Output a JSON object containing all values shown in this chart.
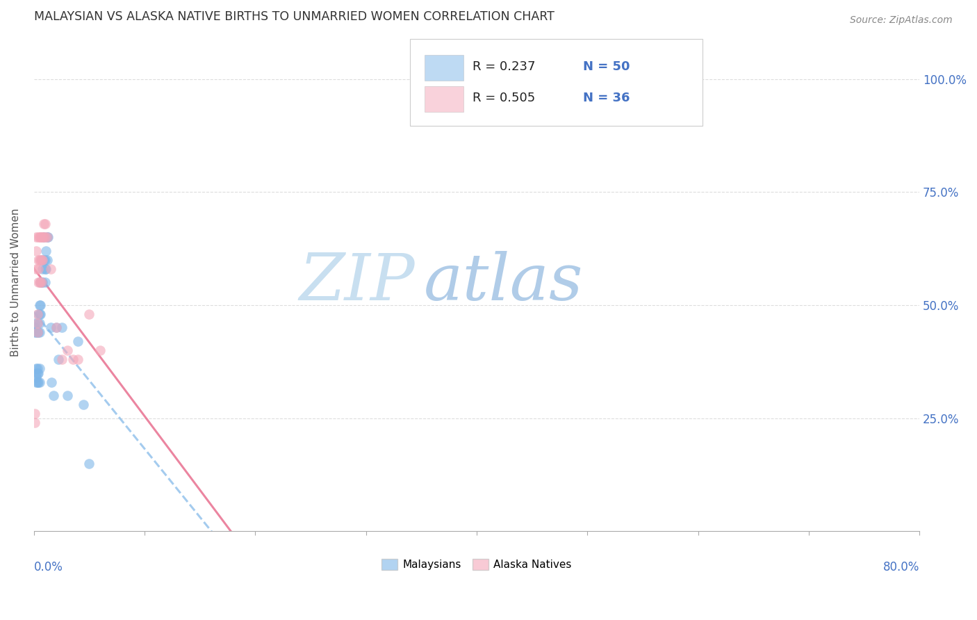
{
  "title": "MALAYSIAN VS ALASKA NATIVE BIRTHS TO UNMARRIED WOMEN CORRELATION CHART",
  "source": "Source: ZipAtlas.com",
  "ylabel": "Births to Unmarried Women",
  "ytick_labels": [
    "25.0%",
    "50.0%",
    "75.0%",
    "100.0%"
  ],
  "ytick_values": [
    0.25,
    0.5,
    0.75,
    1.0
  ],
  "xlim": [
    0.0,
    0.8
  ],
  "ylim": [
    0.0,
    1.1
  ],
  "legend_r1": "R = 0.237",
  "legend_n1": "N = 50",
  "legend_r2": "R = 0.505",
  "legend_n2": "N = 36",
  "malaysian_color": "#7EB6E8",
  "alaska_color": "#F4A7B9",
  "trend_blue_color": "#7EB6E8",
  "trend_pink_color": "#E87090",
  "watermark_color": "#D0E8F8",
  "malaysian_x": [
    0.001,
    0.001,
    0.001,
    0.002,
    0.002,
    0.002,
    0.002,
    0.002,
    0.003,
    0.003,
    0.003,
    0.003,
    0.003,
    0.004,
    0.004,
    0.004,
    0.004,
    0.005,
    0.005,
    0.005,
    0.005,
    0.005,
    0.005,
    0.006,
    0.006,
    0.006,
    0.007,
    0.007,
    0.008,
    0.008,
    0.009,
    0.009,
    0.01,
    0.01,
    0.01,
    0.011,
    0.011,
    0.012,
    0.012,
    0.013,
    0.015,
    0.016,
    0.018,
    0.02,
    0.022,
    0.025,
    0.03,
    0.04,
    0.045,
    0.05
  ],
  "malaysian_y": [
    0.44,
    0.45,
    0.46,
    0.33,
    0.34,
    0.35,
    0.36,
    0.44,
    0.33,
    0.35,
    0.36,
    0.44,
    0.46,
    0.33,
    0.35,
    0.44,
    0.48,
    0.33,
    0.36,
    0.44,
    0.46,
    0.48,
    0.5,
    0.48,
    0.5,
    0.55,
    0.55,
    0.6,
    0.55,
    0.58,
    0.6,
    0.65,
    0.55,
    0.58,
    0.6,
    0.58,
    0.62,
    0.6,
    0.65,
    0.65,
    0.45,
    0.33,
    0.3,
    0.45,
    0.38,
    0.45,
    0.3,
    0.42,
    0.28,
    0.15
  ],
  "alaska_x": [
    0.001,
    0.001,
    0.002,
    0.002,
    0.002,
    0.003,
    0.003,
    0.003,
    0.004,
    0.004,
    0.004,
    0.004,
    0.005,
    0.005,
    0.005,
    0.006,
    0.006,
    0.006,
    0.007,
    0.007,
    0.007,
    0.008,
    0.008,
    0.009,
    0.009,
    0.01,
    0.01,
    0.012,
    0.015,
    0.02,
    0.025,
    0.03,
    0.035,
    0.04,
    0.05,
    0.06
  ],
  "alaska_y": [
    0.24,
    0.26,
    0.58,
    0.62,
    0.65,
    0.44,
    0.46,
    0.48,
    0.55,
    0.58,
    0.6,
    0.65,
    0.55,
    0.6,
    0.65,
    0.55,
    0.6,
    0.65,
    0.55,
    0.6,
    0.65,
    0.6,
    0.65,
    0.65,
    0.68,
    0.65,
    0.68,
    0.65,
    0.58,
    0.45,
    0.38,
    0.4,
    0.38,
    0.38,
    0.48,
    0.4
  ]
}
